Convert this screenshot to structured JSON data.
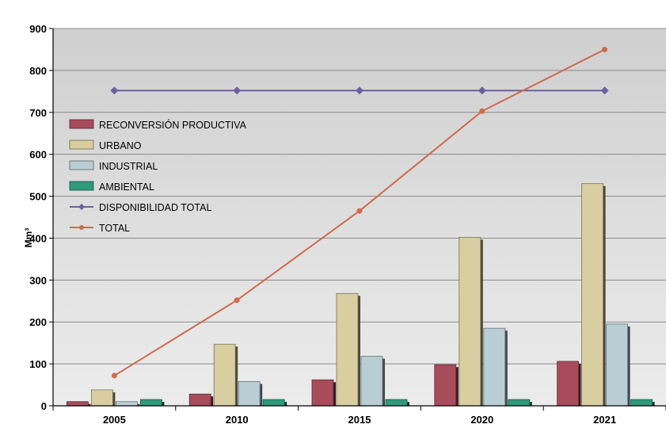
{
  "chart_data": {
    "type": "bar",
    "categories": [
      "2005",
      "2010",
      "2015",
      "2020",
      "2021"
    ],
    "ylabel": "Mm³",
    "ylim": [
      0,
      900
    ],
    "yticks": [
      0,
      100,
      200,
      300,
      400,
      500,
      600,
      700,
      800,
      900
    ],
    "grid": true,
    "legend_position": "left",
    "series": [
      {
        "name": "RECONVERSIÓN PRODUCTIVA",
        "kind": "bar",
        "color": "#a84c5c",
        "values": [
          10,
          28,
          62,
          98,
          106
        ]
      },
      {
        "name": "URBANO",
        "kind": "bar",
        "color": "#d9cea0",
        "values": [
          38,
          147,
          268,
          402,
          530
        ]
      },
      {
        "name": "INDUSTRIAL",
        "kind": "bar",
        "color": "#b8cdd4",
        "values": [
          10,
          58,
          118,
          185,
          195
        ]
      },
      {
        "name": "AMBIENTAL",
        "kind": "bar",
        "color": "#2f9a7c",
        "values": [
          15,
          15,
          15,
          15,
          15
        ]
      },
      {
        "name": "DISPONIBILIDAD TOTAL",
        "kind": "line",
        "color": "#6e5fa0",
        "values": [
          752,
          752,
          752,
          752,
          752
        ]
      },
      {
        "name": "TOTAL",
        "kind": "line",
        "color": "#d06a4a",
        "values": [
          72,
          252,
          465,
          703,
          850
        ]
      }
    ]
  }
}
